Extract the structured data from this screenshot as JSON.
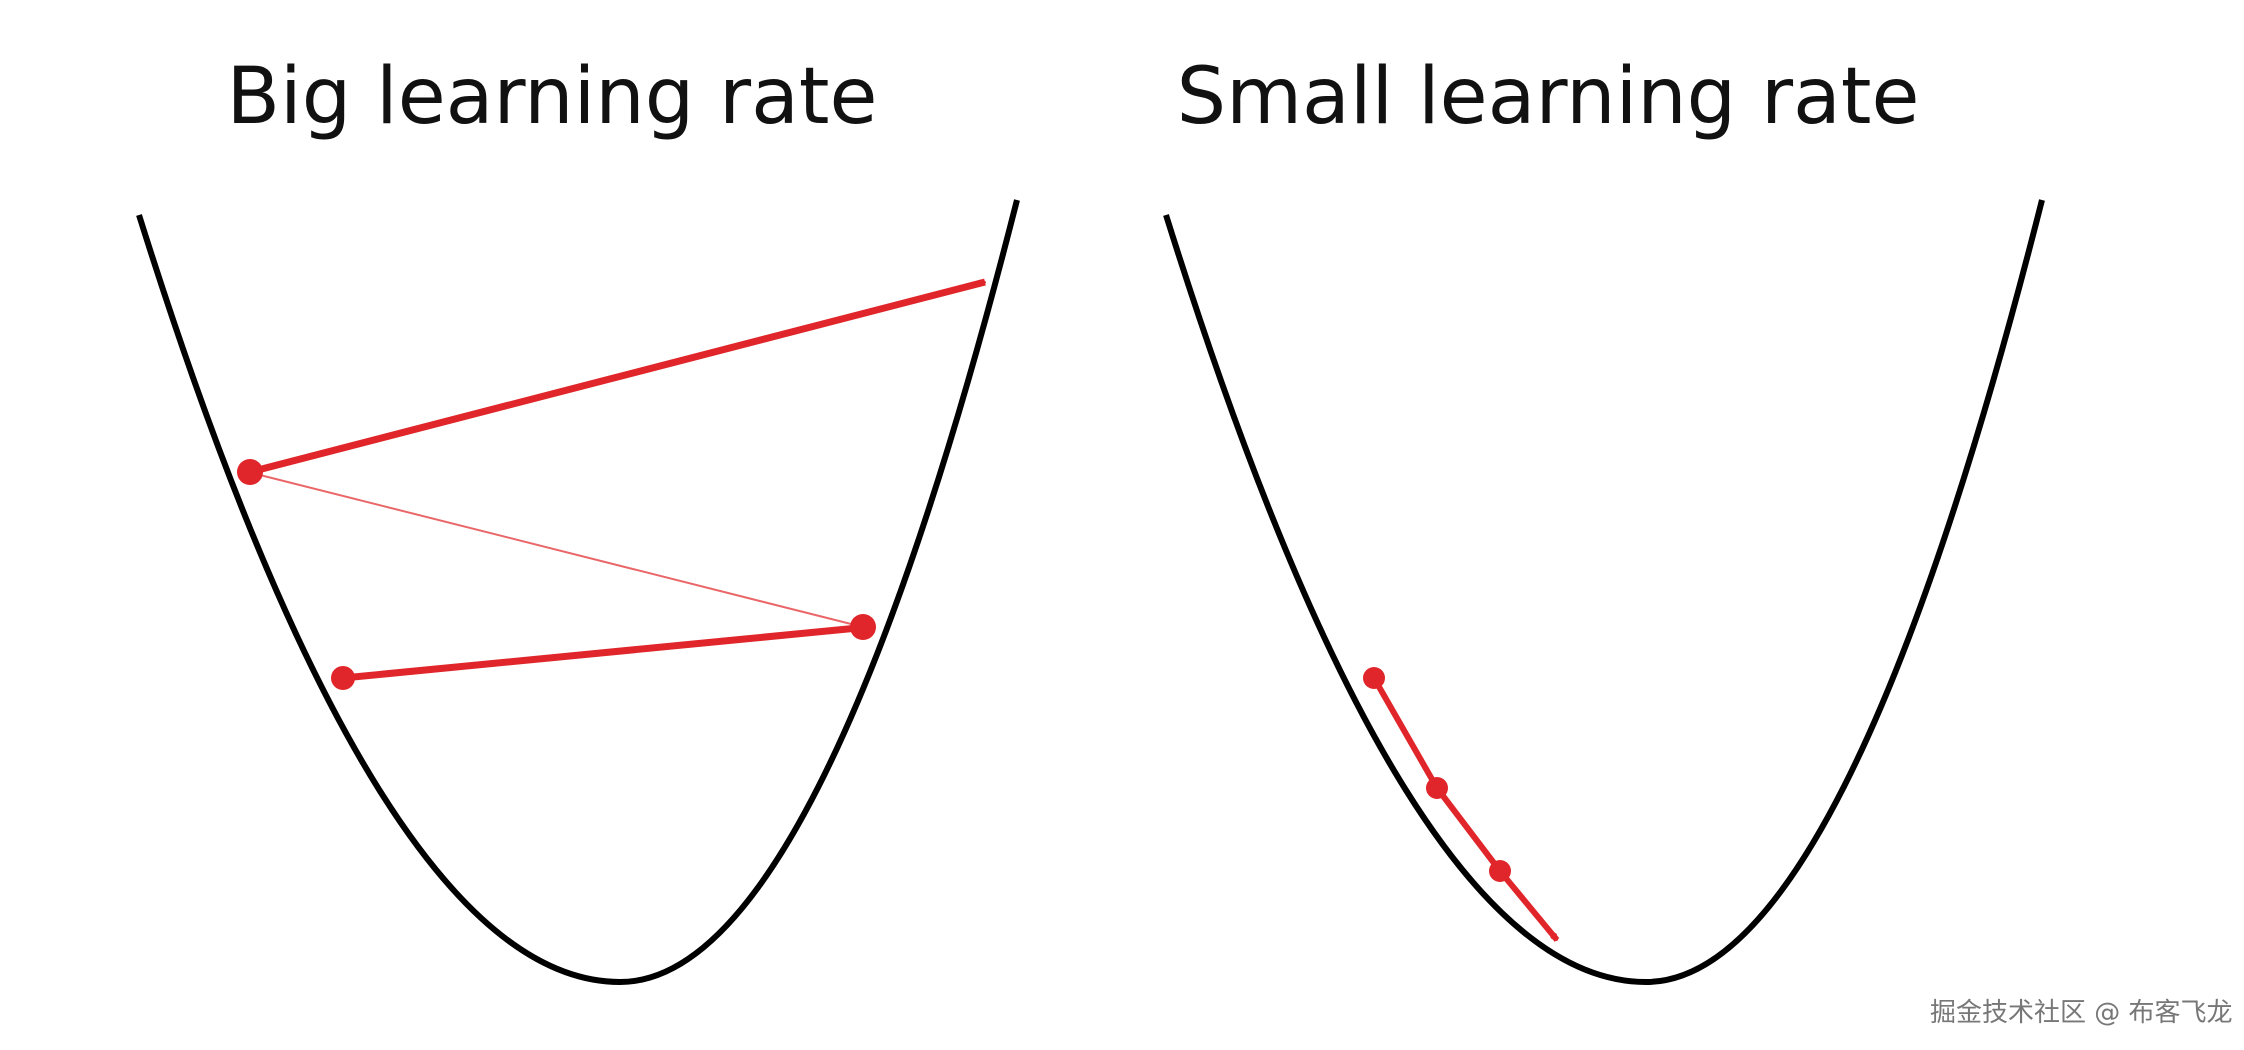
{
  "panels": [
    {
      "title": "Big learning rate"
    },
    {
      "title": "Small learning rate"
    }
  ],
  "watermark": "掘金技术社区 @ 布客飞龙",
  "colors": {
    "curve": "#000000",
    "step": "#e0262a",
    "background": "#ffffff"
  }
}
